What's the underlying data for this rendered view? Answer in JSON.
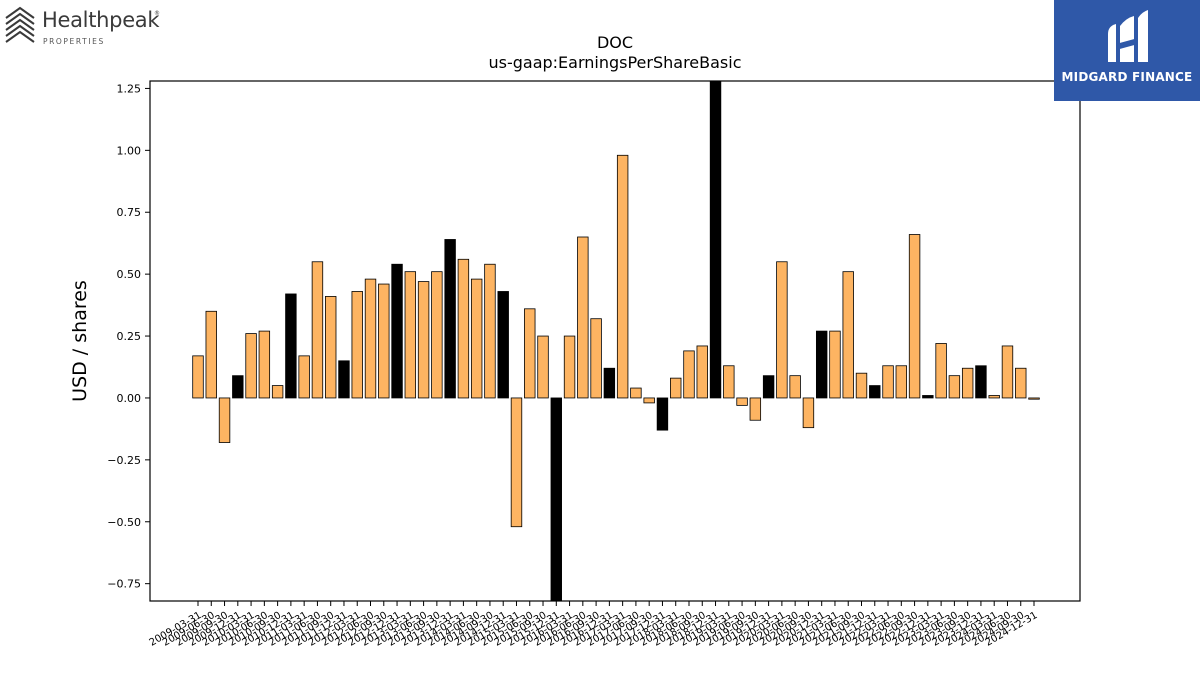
{
  "logos": {
    "left_brand": "Healthpeak",
    "left_reg": "®",
    "left_sub": "PROPERTIES",
    "right_brand": "MIDGARD FINANCE"
  },
  "colors": {
    "bar_default": "#fdb462",
    "bar_highlight": "#000000",
    "logo_right_bg": "#2f58a8"
  },
  "chart_data": {
    "type": "bar",
    "title": "DOC",
    "subtitle": "us-gaap:EarningsPerShareBasic",
    "ylabel": "USD / shares",
    "xlabel": "",
    "ylim": [
      -0.82,
      1.28
    ],
    "yticks": [
      -0.75,
      -0.5,
      -0.25,
      0.0,
      0.25,
      0.5,
      0.75,
      1.0,
      1.25
    ],
    "ytick_labels": [
      "−0.75",
      "−0.50",
      "−0.25",
      "0.00",
      "0.25",
      "0.50",
      "0.75",
      "1.00",
      "1.25"
    ],
    "grid": false,
    "xtick_labels": [
      "2009-03-31",
      "2009-06-30",
      "2009-09-30",
      "2009-12-31",
      "2010-03-31",
      "2010-06-30",
      "2010-09-30",
      "2010-12-31",
      "2011-03-31",
      "2011-06-30",
      "2011-09-30",
      "2011-12-31",
      "2012-03-31",
      "2012-06-30",
      "2012-09-30",
      "2012-12-31",
      "2013-03-31",
      "2013-06-30",
      "2013-09-30",
      "2013-12-31",
      "2014-03-31",
      "2014-06-30",
      "2014-09-30",
      "2014-12-31",
      "2015-03-31",
      "2015-06-30",
      "2015-09-30",
      "2015-12-31",
      "2016-03-31",
      "2016-06-30",
      "2016-09-30",
      "2016-12-31",
      "2017-03-31",
      "2017-06-30",
      "2017-09-30",
      "2017-12-31",
      "2018-03-31",
      "2018-06-30",
      "2018-09-30",
      "2018-12-31",
      "2019-03-31",
      "2019-06-30",
      "2019-09-30",
      "2019-12-31",
      "2020-03-31",
      "2020-06-30",
      "2020-09-30",
      "2020-12-31",
      "2021-03-31",
      "2021-06-30",
      "2021-09-30",
      "2021-12-31",
      "2022-03-31",
      "2022-06-30",
      "2022-09-30",
      "2022-12-31",
      "2023-03-31",
      "2023-06-30",
      "2023-09-30",
      "2023-12-31",
      "2024-03-31",
      "2024-06-30",
      "2024-09-30",
      "2024-12-31"
    ],
    "values": [
      0.17,
      0.35,
      -0.18,
      0.09,
      0.26,
      0.27,
      0.05,
      0.42,
      0.17,
      0.55,
      0.41,
      0.15,
      0.43,
      0.48,
      0.46,
      0.54,
      0.51,
      0.47,
      0.51,
      0.64,
      0.56,
      0.48,
      0.54,
      0.43,
      -0.52,
      0.36,
      0.25,
      -0.82,
      0.25,
      0.65,
      0.32,
      0.12,
      0.98,
      0.04,
      -0.02,
      -0.13,
      0.08,
      0.19,
      0.21,
      1.28,
      0.13,
      -0.03,
      -0.09,
      0.09,
      0.55,
      0.09,
      -0.12,
      0.27,
      0.27,
      0.51,
      0.1,
      0.05,
      0.13,
      0.13,
      0.66,
      0.01,
      0.22,
      0.09,
      0.12,
      0.13,
      0.01,
      0.21,
      0.12,
      -0.005
    ],
    "highlight_indices": [
      3,
      7,
      11,
      15,
      19,
      23,
      27,
      31,
      35,
      39,
      43,
      47,
      51,
      55,
      59
    ]
  }
}
